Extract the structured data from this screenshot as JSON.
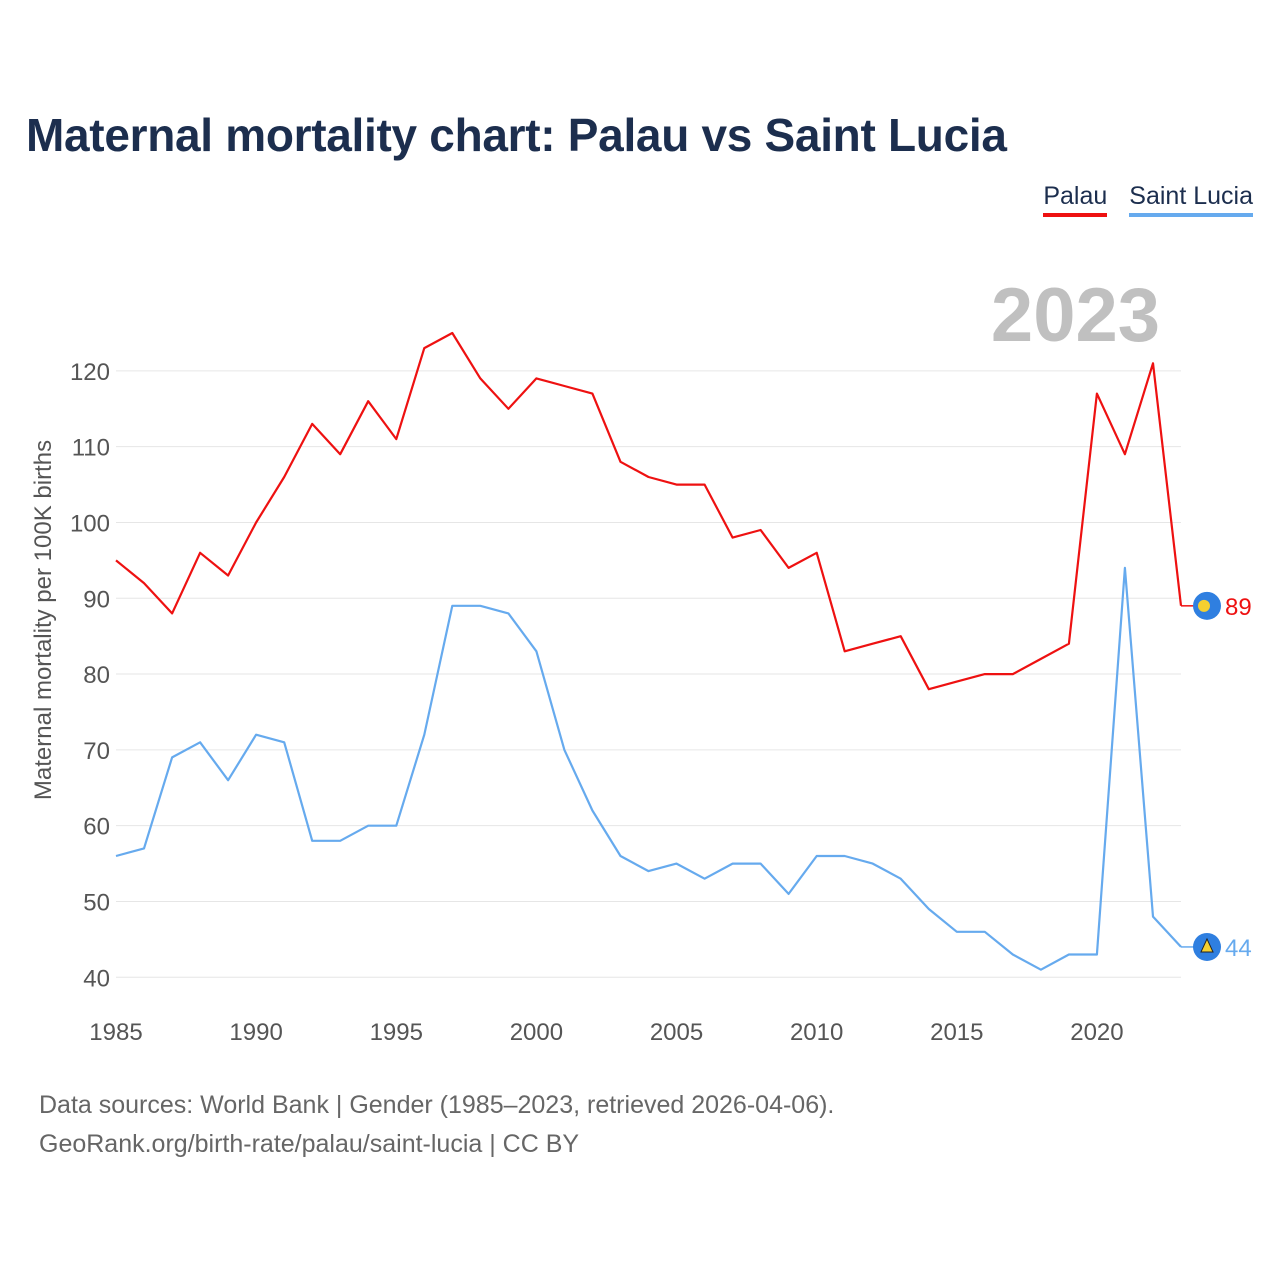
{
  "chart_data": {
    "type": "line",
    "title": "Maternal mortality chart: Palau vs Saint Lucia",
    "ylabel": "Maternal mortality per 100K births",
    "xlabel": "",
    "year_label": "2023",
    "x": [
      1985,
      1986,
      1987,
      1988,
      1989,
      1990,
      1991,
      1992,
      1993,
      1994,
      1995,
      1996,
      1997,
      1998,
      1999,
      2000,
      2001,
      2002,
      2003,
      2004,
      2005,
      2006,
      2007,
      2008,
      2009,
      2010,
      2011,
      2012,
      2013,
      2014,
      2015,
      2016,
      2017,
      2018,
      2019,
      2020,
      2021,
      2022,
      2023
    ],
    "xlim": [
      1985,
      2023
    ],
    "ylim": [
      37,
      137
    ],
    "x_ticks": [
      1985,
      1990,
      1995,
      2000,
      2005,
      2010,
      2015,
      2020
    ],
    "y_ticks": [
      40,
      50,
      60,
      70,
      80,
      90,
      100,
      110,
      120
    ],
    "grid": true,
    "legend_position": "top-right",
    "series": [
      {
        "name": "Palau",
        "color": "#ee1111",
        "end_label": "89",
        "values": [
          95,
          92,
          88,
          96,
          93,
          100,
          106,
          113,
          109,
          116,
          111,
          123,
          125,
          119,
          115,
          119,
          118,
          117,
          108,
          106,
          105,
          105,
          98,
          99,
          94,
          96,
          83,
          84,
          85,
          78,
          79,
          80,
          80,
          82,
          84,
          117,
          109,
          121,
          89
        ]
      },
      {
        "name": "Saint Lucia",
        "color": "#66aaee",
        "end_label": "44",
        "values": [
          56,
          57,
          69,
          71,
          66,
          72,
          71,
          58,
          58,
          60,
          60,
          72,
          89,
          89,
          88,
          83,
          70,
          62,
          56,
          54,
          55,
          53,
          55,
          55,
          51,
          56,
          56,
          55,
          53,
          49,
          46,
          46,
          43,
          41,
          43,
          43,
          94,
          48,
          44
        ]
      }
    ]
  },
  "footer": {
    "line1": "Data sources: World Bank | Gender (1985–2023, retrieved 2026-04-06).",
    "line2": "GeoRank.org/birth-rate/palau/saint-lucia | CC BY"
  }
}
